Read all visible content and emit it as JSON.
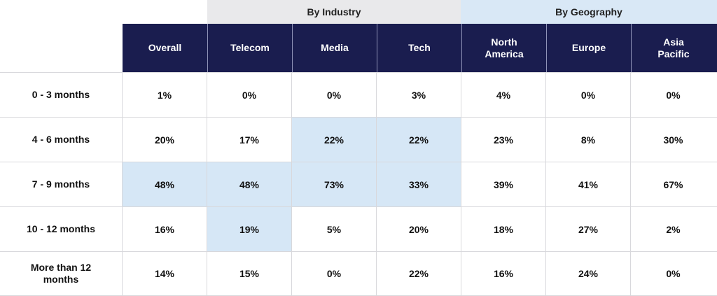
{
  "table": {
    "groups": {
      "industry": "By Industry",
      "geography": "By Geography"
    },
    "columns": [
      "Overall",
      "Telecom",
      "Media",
      "Tech",
      "North\nAmerica",
      "Europe",
      "Asia\nPacific"
    ],
    "rows": [
      {
        "label": "0 - 3 months",
        "cells": [
          "1%",
          "0%",
          "0%",
          "3%",
          "4%",
          "0%",
          "0%"
        ]
      },
      {
        "label": "4 - 6 months",
        "cells": [
          "20%",
          "17%",
          "22%",
          "22%",
          "23%",
          "8%",
          "30%"
        ]
      },
      {
        "label": "7 - 9 months",
        "cells": [
          "48%",
          "48%",
          "73%",
          "33%",
          "39%",
          "41%",
          "67%"
        ]
      },
      {
        "label": "10 - 12 months",
        "cells": [
          "16%",
          "19%",
          "5%",
          "20%",
          "18%",
          "27%",
          "2%"
        ]
      },
      {
        "label": "More than 12 months",
        "cells": [
          "14%",
          "15%",
          "0%",
          "22%",
          "16%",
          "24%",
          "0%"
        ]
      }
    ]
  },
  "chart_data": {
    "type": "table",
    "column_groups": [
      {
        "name": "By Industry",
        "columns": [
          "Telecom",
          "Media",
          "Tech"
        ]
      },
      {
        "name": "By Geography",
        "columns": [
          "North America",
          "Europe",
          "Asia Pacific"
        ]
      }
    ],
    "columns": [
      "Overall",
      "Telecom",
      "Media",
      "Tech",
      "North America",
      "Europe",
      "Asia Pacific"
    ],
    "row_labels": [
      "0 - 3 months",
      "4 - 6 months",
      "7 - 9 months",
      "10 - 12 months",
      "More than 12 months"
    ],
    "values": [
      [
        1,
        0,
        0,
        3,
        4,
        0,
        0
      ],
      [
        20,
        17,
        22,
        22,
        23,
        8,
        30
      ],
      [
        48,
        48,
        73,
        33,
        39,
        41,
        67
      ],
      [
        16,
        19,
        5,
        20,
        18,
        27,
        2
      ],
      [
        14,
        15,
        0,
        22,
        16,
        24,
        0
      ]
    ],
    "unit": "%",
    "highlighted_cells": [
      [
        1,
        2
      ],
      [
        1,
        3
      ],
      [
        2,
        0
      ],
      [
        2,
        1
      ],
      [
        2,
        2
      ],
      [
        2,
        3
      ],
      [
        3,
        1
      ]
    ],
    "colors": {
      "header_bg": "#1a1d4f",
      "highlight": "#d6e7f6",
      "industry_bg": "#e9e9eb",
      "geography_bg": "#d9e8f6"
    }
  }
}
